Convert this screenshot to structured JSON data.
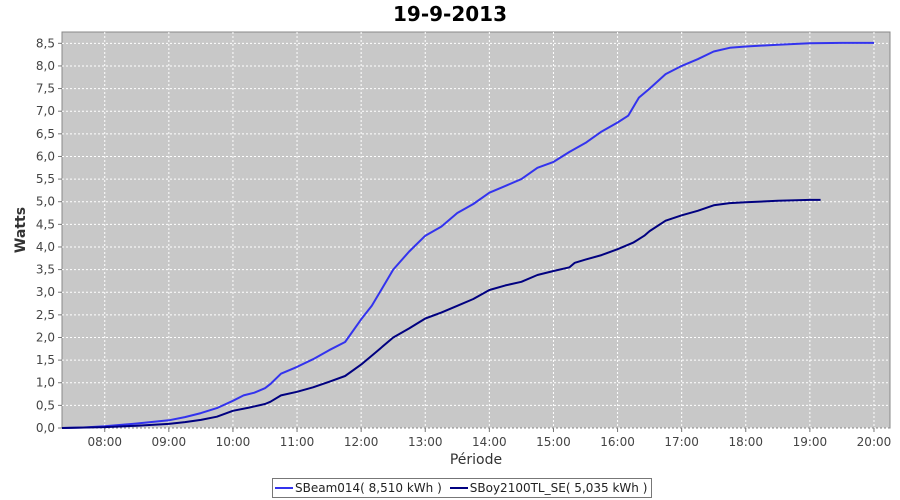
{
  "chart_data": {
    "type": "line",
    "title": "19-9-2013",
    "xlabel": "Période",
    "ylabel": "Watts",
    "xlim": [
      "07:20",
      "20:15"
    ],
    "ylim": [
      0,
      8.75
    ],
    "xticks": [
      "08:00",
      "09:00",
      "10:00",
      "11:00",
      "12:00",
      "13:00",
      "14:00",
      "15:00",
      "16:00",
      "17:00",
      "18:00",
      "19:00",
      "20:00"
    ],
    "yticks": [
      "0,0",
      "0,5",
      "1,0",
      "1,5",
      "2,0",
      "2,5",
      "3,0",
      "3,5",
      "4,0",
      "4,5",
      "5,0",
      "5,5",
      "6,0",
      "6,5",
      "7,0",
      "7,5",
      "8,0",
      "8,5"
    ],
    "grid": true,
    "background": "#c8c8c8",
    "legend_position": "bottom",
    "series": [
      {
        "name": "SBeam014( 8,510 kWh )",
        "color": "#3333ee",
        "points": [
          [
            "07:20",
            0.0
          ],
          [
            "07:40",
            0.01
          ],
          [
            "08:00",
            0.04
          ],
          [
            "08:30",
            0.1
          ],
          [
            "09:00",
            0.17
          ],
          [
            "09:15",
            0.24
          ],
          [
            "09:30",
            0.33
          ],
          [
            "09:45",
            0.44
          ],
          [
            "10:00",
            0.6
          ],
          [
            "10:10",
            0.72
          ],
          [
            "10:20",
            0.78
          ],
          [
            "10:30",
            0.88
          ],
          [
            "10:35",
            0.97
          ],
          [
            "10:45",
            1.2
          ],
          [
            "11:00",
            1.35
          ],
          [
            "11:15",
            1.52
          ],
          [
            "11:30",
            1.72
          ],
          [
            "11:45",
            1.9
          ],
          [
            "12:00",
            2.4
          ],
          [
            "12:10",
            2.7
          ],
          [
            "12:20",
            3.1
          ],
          [
            "12:30",
            3.5
          ],
          [
            "12:45",
            3.9
          ],
          [
            "13:00",
            4.25
          ],
          [
            "13:15",
            4.45
          ],
          [
            "13:30",
            4.75
          ],
          [
            "13:45",
            4.95
          ],
          [
            "14:00",
            5.2
          ],
          [
            "14:15",
            5.35
          ],
          [
            "14:30",
            5.5
          ],
          [
            "14:45",
            5.75
          ],
          [
            "15:00",
            5.88
          ],
          [
            "15:15",
            6.1
          ],
          [
            "15:30",
            6.3
          ],
          [
            "15:45",
            6.55
          ],
          [
            "16:00",
            6.75
          ],
          [
            "16:10",
            6.9
          ],
          [
            "16:20",
            7.3
          ],
          [
            "16:30",
            7.5
          ],
          [
            "16:45",
            7.82
          ],
          [
            "17:00",
            8.0
          ],
          [
            "17:15",
            8.15
          ],
          [
            "17:30",
            8.32
          ],
          [
            "17:45",
            8.4
          ],
          [
            "18:00",
            8.43
          ],
          [
            "18:30",
            8.47
          ],
          [
            "19:00",
            8.5
          ],
          [
            "19:30",
            8.51
          ],
          [
            "20:00",
            8.51
          ]
        ]
      },
      {
        "name": "SBoy2100TL_SE( 5,035 kWh )",
        "color": "#000080",
        "points": [
          [
            "07:20",
            0.0
          ],
          [
            "08:00",
            0.02
          ],
          [
            "08:30",
            0.05
          ],
          [
            "09:00",
            0.09
          ],
          [
            "09:15",
            0.13
          ],
          [
            "09:30",
            0.18
          ],
          [
            "09:45",
            0.25
          ],
          [
            "10:00",
            0.38
          ],
          [
            "10:15",
            0.45
          ],
          [
            "10:30",
            0.53
          ],
          [
            "10:35",
            0.58
          ],
          [
            "10:45",
            0.72
          ],
          [
            "11:00",
            0.8
          ],
          [
            "11:15",
            0.9
          ],
          [
            "11:30",
            1.02
          ],
          [
            "11:45",
            1.15
          ],
          [
            "12:00",
            1.4
          ],
          [
            "12:15",
            1.7
          ],
          [
            "12:30",
            2.0
          ],
          [
            "12:45",
            2.2
          ],
          [
            "13:00",
            2.42
          ],
          [
            "13:15",
            2.55
          ],
          [
            "13:30",
            2.7
          ],
          [
            "13:45",
            2.85
          ],
          [
            "14:00",
            3.05
          ],
          [
            "14:15",
            3.15
          ],
          [
            "14:30",
            3.23
          ],
          [
            "14:45",
            3.38
          ],
          [
            "15:00",
            3.47
          ],
          [
            "15:15",
            3.55
          ],
          [
            "15:20",
            3.65
          ],
          [
            "15:30",
            3.72
          ],
          [
            "15:45",
            3.82
          ],
          [
            "16:00",
            3.95
          ],
          [
            "16:15",
            4.1
          ],
          [
            "16:25",
            4.25
          ],
          [
            "16:30",
            4.35
          ],
          [
            "16:45",
            4.58
          ],
          [
            "17:00",
            4.7
          ],
          [
            "17:15",
            4.8
          ],
          [
            "17:30",
            4.92
          ],
          [
            "17:45",
            4.97
          ],
          [
            "18:00",
            4.99
          ],
          [
            "18:30",
            5.02
          ],
          [
            "19:00",
            5.04
          ],
          [
            "19:10",
            5.04
          ]
        ]
      }
    ]
  }
}
